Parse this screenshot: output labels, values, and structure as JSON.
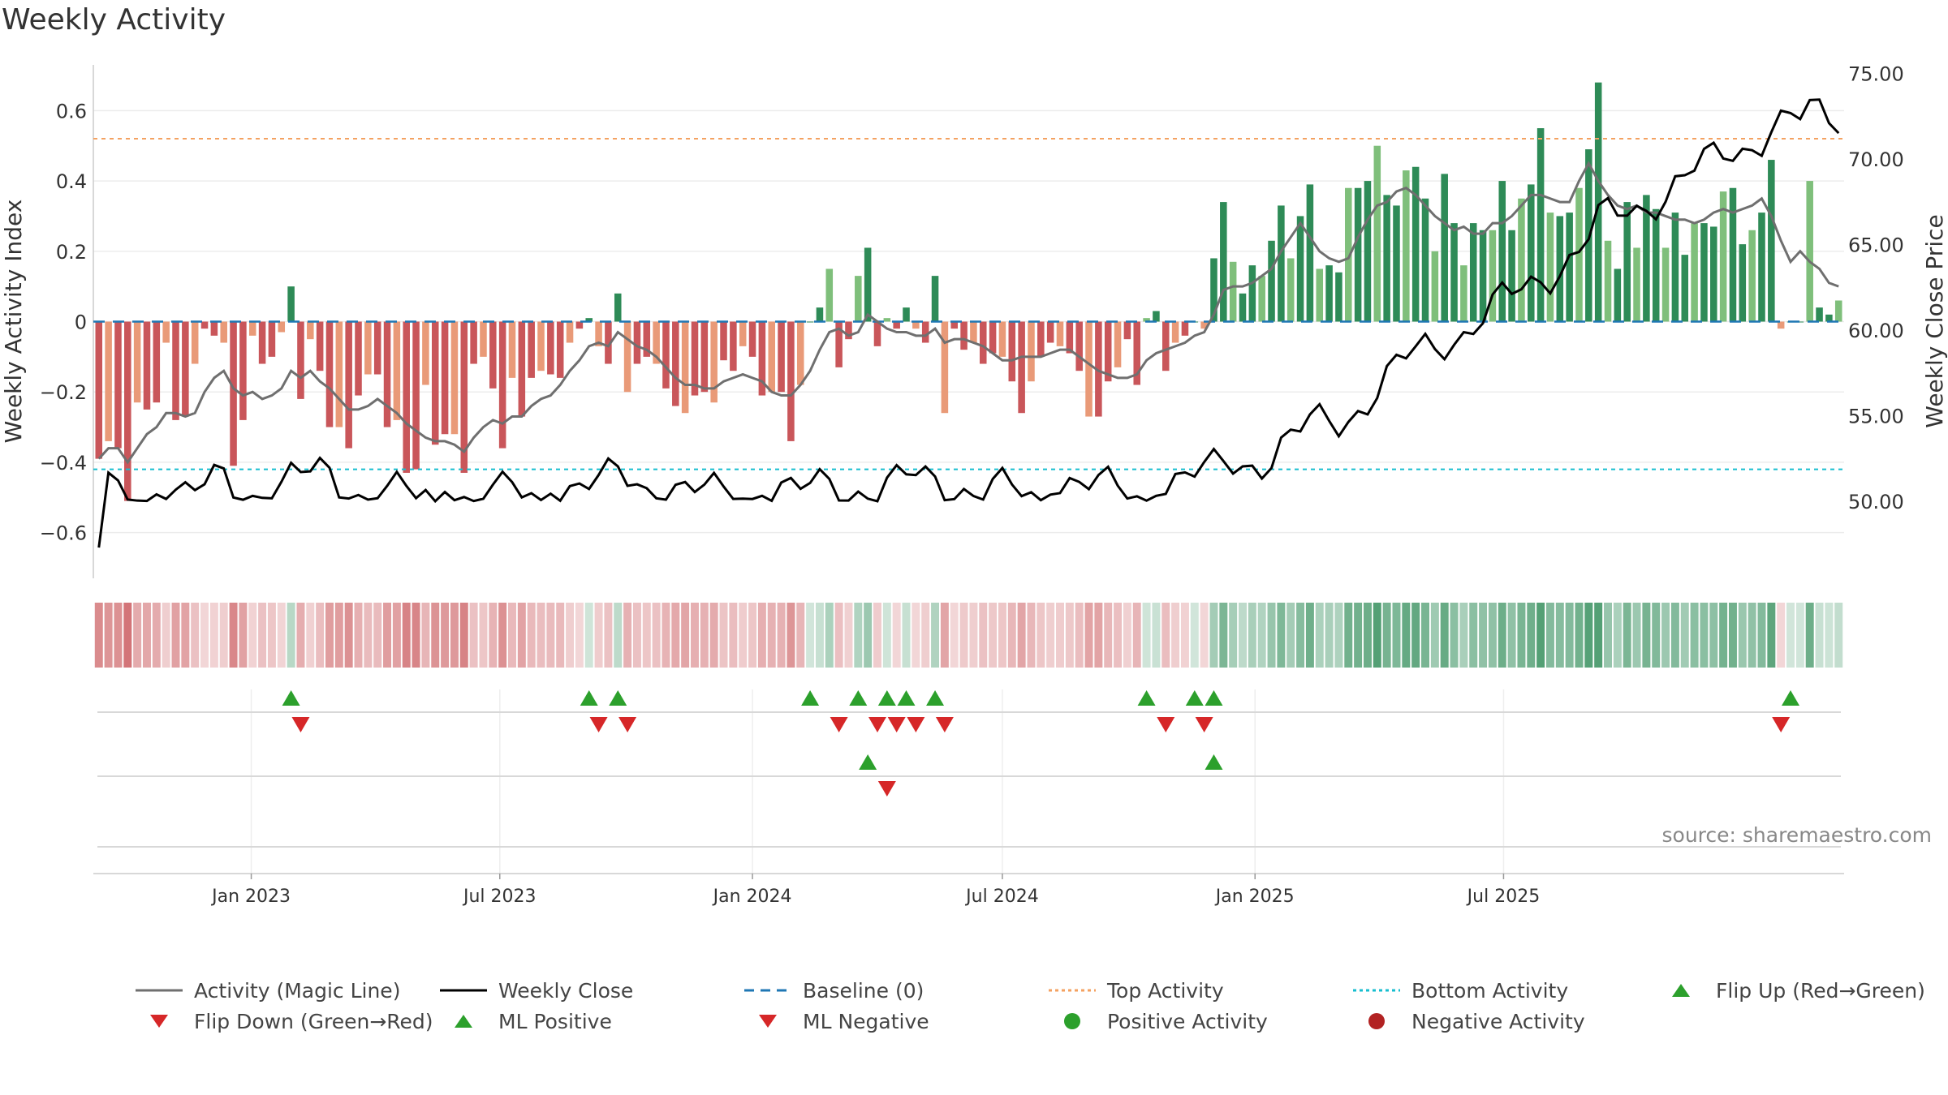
{
  "title": "Weekly Activity",
  "source": "source: sharemaestro.com",
  "colors": {
    "pos_dark": "#2e8b57",
    "pos_light": "#7fbf7b",
    "neg_dark": "#c9565a",
    "neg_light": "#e99a78",
    "magic_line": "#6f6f6f",
    "close_line": "#000000",
    "baseline": "#1f77b4",
    "top": "#f4a261",
    "bottom": "#17becf",
    "flip_up": "#2ca02c",
    "flip_down": "#d62728"
  },
  "legend": [
    {
      "label": "Activity (Magic Line)",
      "kind": "line",
      "color": "#6f6f6f",
      "dash": ""
    },
    {
      "label": "Weekly Close",
      "kind": "line",
      "color": "#000000",
      "dash": ""
    },
    {
      "label": "Baseline (0)",
      "kind": "line",
      "color": "#1f77b4",
      "dash": "12,8"
    },
    {
      "label": "Top Activity",
      "kind": "line",
      "color": "#f4a261",
      "dash": "4,4"
    },
    {
      "label": "Bottom Activity",
      "kind": "line",
      "color": "#17becf",
      "dash": "4,4"
    },
    {
      "label": "Flip Up (Red→Green)",
      "kind": "tri-up",
      "color": "#2ca02c"
    },
    {
      "label": "Flip Down (Green→Red)",
      "kind": "tri-down",
      "color": "#d62728"
    },
    {
      "label": "ML Positive",
      "kind": "tri-up",
      "color": "#2ca02c"
    },
    {
      "label": "ML Negative",
      "kind": "tri-down",
      "color": "#d62728"
    },
    {
      "label": "Positive Activity",
      "kind": "dot",
      "color": "#2ca02c"
    },
    {
      "label": "Negative Activity",
      "kind": "dot",
      "color": "#b22222"
    }
  ],
  "chart_data": {
    "type": "bar",
    "title": "Weekly Activity",
    "xlabel": "",
    "ylabel": "Weekly Activity Index",
    "y2label": "Weekly Close Price",
    "x_start": "2022-09-12",
    "x_step_days": 7,
    "x_ticks": [
      "Jan 2023",
      "Jul 2023",
      "Jan 2024",
      "Jul 2024",
      "Jan 2025",
      "Jul 2025"
    ],
    "x_tick_dates": [
      "2023-01-01",
      "2023-07-01",
      "2024-01-01",
      "2024-07-01",
      "2025-01-01",
      "2025-07-01"
    ],
    "ylim": [
      -0.73,
      0.73
    ],
    "y_ticks": [
      -0.6,
      -0.4,
      -0.2,
      0,
      0.2,
      0.4,
      0.6
    ],
    "y_tick_labels": [
      "−0.6",
      "−0.4",
      "−0.2",
      "0",
      "0.2",
      "0.4",
      "0.6"
    ],
    "y2lim": [
      45.5,
      75.5
    ],
    "y2_ticks": [
      50,
      55,
      60,
      65,
      70,
      75
    ],
    "y2_tick_labels": [
      "50.00",
      "55.00",
      "60.00",
      "65.00",
      "70.00",
      "75.00"
    ],
    "top_activity": 0.52,
    "bottom_activity": -0.42,
    "baseline": 0,
    "legend_position": "bottom",
    "grid": true,
    "activity": [
      -0.39,
      -0.34,
      -0.36,
      -0.51,
      -0.23,
      -0.25,
      -0.23,
      -0.06,
      -0.28,
      -0.27,
      -0.12,
      -0.02,
      -0.04,
      -0.06,
      -0.41,
      -0.28,
      -0.04,
      -0.12,
      -0.1,
      -0.03,
      0.1,
      -0.22,
      -0.05,
      -0.14,
      -0.3,
      -0.3,
      -0.36,
      -0.21,
      -0.15,
      -0.15,
      -0.3,
      -0.28,
      -0.43,
      -0.42,
      -0.18,
      -0.35,
      -0.32,
      -0.32,
      -0.43,
      -0.12,
      -0.1,
      -0.19,
      -0.36,
      -0.16,
      -0.27,
      -0.16,
      -0.14,
      -0.15,
      -0.16,
      -0.06,
      -0.02,
      0.01,
      -0.07,
      -0.12,
      0.08,
      -0.2,
      -0.12,
      -0.1,
      -0.12,
      -0.19,
      -0.24,
      -0.26,
      -0.21,
      -0.2,
      -0.23,
      -0.11,
      -0.14,
      -0.07,
      -0.1,
      -0.21,
      -0.2,
      -0.2,
      -0.34,
      -0.18,
      0.0,
      0.04,
      0.15,
      -0.13,
      -0.05,
      0.13,
      0.21,
      -0.07,
      0.01,
      -0.02,
      0.04,
      -0.02,
      -0.06,
      0.13,
      -0.26,
      -0.02,
      -0.08,
      -0.06,
      -0.12,
      -0.09,
      -0.1,
      -0.17,
      -0.26,
      -0.17,
      -0.1,
      -0.06,
      -0.07,
      -0.09,
      -0.14,
      -0.27,
      -0.27,
      -0.17,
      -0.13,
      -0.05,
      -0.18,
      0.01,
      0.03,
      -0.14,
      -0.06,
      -0.04,
      0.0,
      -0.02,
      0.18,
      0.34,
      0.17,
      0.08,
      0.16,
      0.13,
      0.23,
      0.33,
      0.18,
      0.3,
      0.39,
      0.15,
      0.16,
      0.14,
      0.38,
      0.38,
      0.4,
      0.5,
      0.36,
      0.33,
      0.43,
      0.44,
      0.35,
      0.2,
      0.42,
      0.28,
      0.16,
      0.28,
      0.26,
      0.26,
      0.4,
      0.26,
      0.35,
      0.39,
      0.55,
      0.31,
      0.3,
      0.31,
      0.38,
      0.49,
      0.68,
      0.23,
      0.15,
      0.34,
      0.21,
      0.36,
      0.32,
      0.21,
      0.31,
      0.19,
      0.28,
      0.28,
      0.27,
      0.37,
      0.38,
      0.22,
      0.26,
      0.31,
      0.46,
      -0.02,
      0.0,
      0.0,
      0.4,
      0.04,
      0.02,
      0.06
    ],
    "magic_line": [
      -0.39,
      -0.36,
      -0.36,
      -0.4,
      -0.36,
      -0.32,
      -0.3,
      -0.26,
      -0.26,
      -0.27,
      -0.26,
      -0.2,
      -0.16,
      -0.14,
      -0.19,
      -0.21,
      -0.2,
      -0.22,
      -0.21,
      -0.19,
      -0.14,
      -0.16,
      -0.14,
      -0.17,
      -0.19,
      -0.22,
      -0.25,
      -0.25,
      -0.24,
      -0.22,
      -0.24,
      -0.26,
      -0.29,
      -0.31,
      -0.33,
      -0.34,
      -0.34,
      -0.35,
      -0.37,
      -0.33,
      -0.3,
      -0.28,
      -0.29,
      -0.27,
      -0.27,
      -0.24,
      -0.22,
      -0.21,
      -0.18,
      -0.14,
      -0.11,
      -0.07,
      -0.06,
      -0.07,
      -0.03,
      -0.05,
      -0.07,
      -0.08,
      -0.1,
      -0.13,
      -0.16,
      -0.18,
      -0.18,
      -0.19,
      -0.19,
      -0.17,
      -0.16,
      -0.15,
      -0.16,
      -0.17,
      -0.2,
      -0.21,
      -0.21,
      -0.18,
      -0.14,
      -0.08,
      -0.03,
      -0.02,
      -0.04,
      -0.03,
      0.02,
      0.0,
      -0.02,
      -0.03,
      -0.03,
      -0.04,
      -0.04,
      -0.02,
      -0.06,
      -0.05,
      -0.05,
      -0.06,
      -0.07,
      -0.09,
      -0.11,
      -0.11,
      -0.1,
      -0.1,
      -0.1,
      -0.09,
      -0.08,
      -0.08,
      -0.1,
      -0.12,
      -0.14,
      -0.15,
      -0.16,
      -0.16,
      -0.15,
      -0.11,
      -0.09,
      -0.08,
      -0.07,
      -0.06,
      -0.04,
      -0.03,
      0.02,
      0.09,
      0.1,
      0.1,
      0.11,
      0.13,
      0.15,
      0.2,
      0.24,
      0.28,
      0.24,
      0.2,
      0.18,
      0.17,
      0.18,
      0.24,
      0.29,
      0.33,
      0.34,
      0.37,
      0.38,
      0.36,
      0.33,
      0.3,
      0.28,
      0.26,
      0.27,
      0.25,
      0.25,
      0.28,
      0.28,
      0.3,
      0.33,
      0.36,
      0.36,
      0.35,
      0.34,
      0.34,
      0.4,
      0.45,
      0.4,
      0.36,
      0.33,
      0.32,
      0.33,
      0.31,
      0.31,
      0.3,
      0.29,
      0.29,
      0.28,
      0.29,
      0.31,
      0.32,
      0.31,
      0.32,
      0.33,
      0.35,
      0.3,
      0.23,
      0.17,
      0.2,
      0.17,
      0.15,
      0.11,
      0.1
    ]
  }
}
